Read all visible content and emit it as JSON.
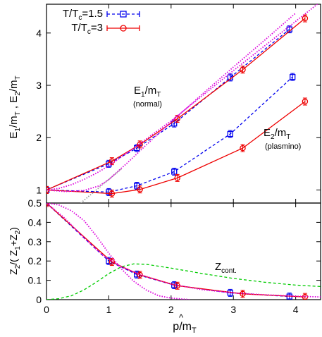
{
  "chart_data": [
    {
      "type": "line",
      "panel": "top",
      "ylabel_parts": {
        "E": "E",
        "s1": "1",
        "mid": "/m",
        "sT": "T",
        "sep": " , E",
        "s2": "2",
        "mid2": "/m",
        "sT2": "T"
      },
      "xlim": [
        0,
        4.4
      ],
      "ylim": [
        0.75,
        4.55
      ],
      "yticks": [
        1,
        2,
        3,
        4
      ],
      "grid": false,
      "legend": "top-left",
      "legend_entries": [
        {
          "label_main": "T/T",
          "label_sub": "c",
          "label_tail": "=1.5",
          "color": "#0000ee",
          "marker": "square",
          "style": "dashed"
        },
        {
          "label_main": "T/T",
          "label_sub": "c",
          "label_tail": "=3",
          "color": "#ee0000",
          "marker": "circle",
          "style": "solid"
        }
      ],
      "annotations": {
        "e1": {
          "main": "E",
          "sub1": "1",
          "mid": "/m",
          "sub2": "T",
          "note": "(normal)"
        },
        "e2": {
          "main": "E",
          "sub1": "2",
          "mid": "/m",
          "sub2": "T",
          "note": "(plasmino)"
        }
      },
      "series": [
        {
          "color": "#0000ee",
          "marker": "square",
          "x": [
            0,
            1.0,
            1.45,
            2.05,
            2.95,
            3.9
          ],
          "y": [
            1.0,
            1.5,
            1.8,
            2.27,
            3.15,
            4.07
          ]
        },
        {
          "color": "#0000ee",
          "marker": "square",
          "x": [
            0,
            1.0,
            1.45,
            2.05,
            2.95,
            3.95
          ],
          "y": [
            1.0,
            0.96,
            1.08,
            1.35,
            2.07,
            3.16
          ]
        },
        {
          "color": "#ee0000",
          "marker": "circle",
          "x": [
            0,
            1.05,
            1.5,
            2.1,
            3.15,
            4.15
          ],
          "y": [
            1.0,
            1.55,
            1.87,
            2.36,
            3.3,
            4.28
          ]
        },
        {
          "color": "#ee0000",
          "marker": "circle",
          "x": [
            0,
            1.05,
            1.5,
            2.1,
            3.15,
            4.15
          ],
          "y": [
            1.0,
            0.93,
            1.01,
            1.23,
            1.8,
            2.69
          ]
        },
        {
          "color": "#dd00dd",
          "style": "dotted",
          "x": [
            0,
            0.2,
            0.4,
            0.6,
            0.8,
            1.0,
            1.4,
            2.0,
            3.0,
            4.4
          ],
          "y": [
            1.0,
            1.03,
            1.1,
            1.2,
            1.32,
            1.46,
            1.8,
            2.32,
            3.28,
            4.6
          ]
        },
        {
          "color": "#dd00dd",
          "style": "dotted",
          "x": [
            0,
            0.3,
            0.6,
            0.85,
            1.0,
            1.3,
            1.6,
            2.0,
            2.5,
            3.0,
            3.5,
            4.0
          ],
          "y": [
            1.0,
            0.97,
            0.99,
            1.08,
            1.2,
            1.52,
            1.86,
            2.3,
            2.83,
            3.35,
            3.86,
            4.38
          ]
        },
        {
          "color": "#999999",
          "style": "dotted",
          "x": [
            0.55,
            0.8,
            1.0,
            1.2
          ],
          "y": [
            0.75,
            1.0,
            1.2,
            1.4
          ]
        }
      ]
    },
    {
      "type": "line",
      "panel": "bottom",
      "ylabel_parts": {
        "Z": "Z",
        "s2": "2",
        "div": "/( Z",
        "s1": "1",
        "plus": "+Z",
        "s2b": "2",
        "close": ")"
      },
      "xlabel_parts": {
        "hat": "^",
        "main": "p/m",
        "sub": "T"
      },
      "xlim": [
        0,
        4.4
      ],
      "ylim": [
        0,
        0.5
      ],
      "xticks": [
        0,
        1,
        2,
        3,
        4
      ],
      "yticks": [
        0,
        0.1,
        0.2,
        0.3,
        0.4,
        0.5
      ],
      "annotations": {
        "zcont": {
          "main": "Z",
          "sub": "cont."
        }
      },
      "series": [
        {
          "color": "#0000ee",
          "marker": "square",
          "x": [
            0,
            1.0,
            1.45,
            2.05,
            2.95,
            3.9
          ],
          "y": [
            0.5,
            0.2,
            0.13,
            0.075,
            0.035,
            0.016
          ]
        },
        {
          "color": "#ee0000",
          "marker": "circle",
          "x": [
            0,
            1.05,
            1.5,
            2.1,
            3.15,
            4.15
          ],
          "y": [
            0.5,
            0.195,
            0.128,
            0.072,
            0.03,
            0.014
          ]
        },
        {
          "color": "#dd00dd",
          "style": "dotted",
          "x": [
            0,
            0.2,
            0.4,
            0.6,
            0.8,
            1.0,
            1.2,
            1.4,
            1.6,
            1.8,
            2.0,
            2.3
          ],
          "y": [
            0.5,
            0.49,
            0.46,
            0.41,
            0.33,
            0.24,
            0.16,
            0.095,
            0.05,
            0.02,
            0.008,
            0.0
          ]
        },
        {
          "color": "#dd00dd",
          "style": "dotted",
          "x": [
            0,
            0.3,
            0.6,
            0.9,
            1.2,
            1.5,
            2.0,
            2.5,
            3.0,
            3.5,
            4.0,
            4.4
          ],
          "y": [
            0.5,
            0.42,
            0.32,
            0.23,
            0.17,
            0.13,
            0.08,
            0.052,
            0.035,
            0.025,
            0.018,
            0.014
          ]
        },
        {
          "color": "#00cc00",
          "style": "dashed",
          "x": [
            0,
            0.2,
            0.4,
            0.6,
            0.8,
            1.0,
            1.2,
            1.4,
            1.6,
            2.0,
            2.5,
            3.0,
            3.5,
            4.0,
            4.4
          ],
          "y": [
            0.0,
            0.005,
            0.02,
            0.05,
            0.09,
            0.135,
            0.17,
            0.185,
            0.183,
            0.163,
            0.135,
            0.11,
            0.09,
            0.075,
            0.068
          ]
        }
      ]
    }
  ]
}
